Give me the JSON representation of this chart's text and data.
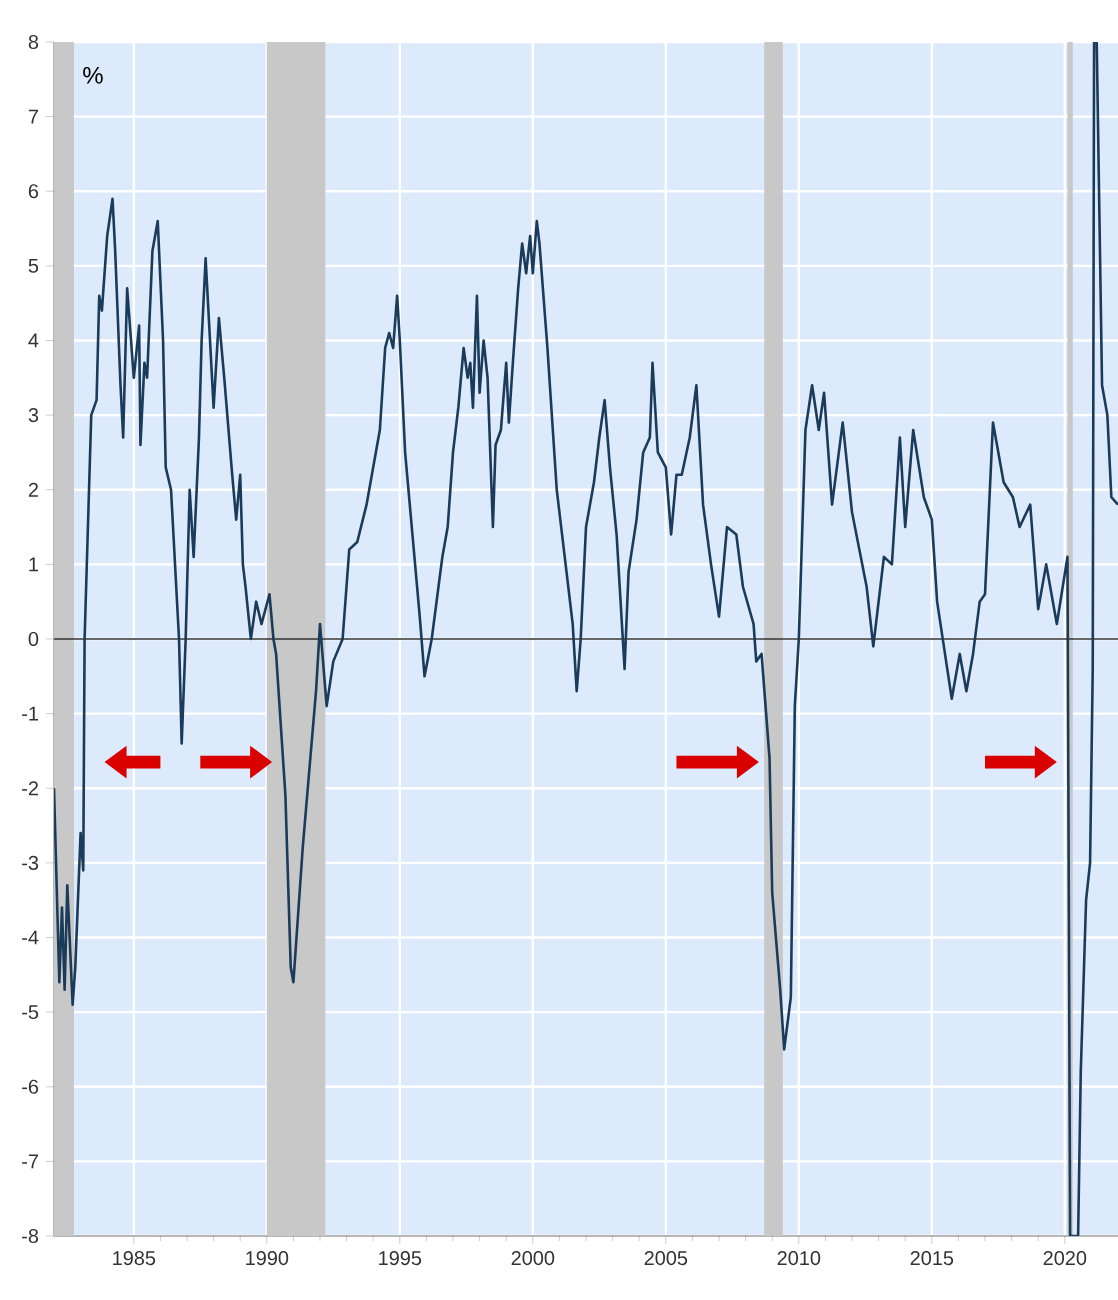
{
  "chart_data": {
    "type": "line",
    "ylabel": "%",
    "xlim": [
      1982,
      2022
    ],
    "ylim": [
      -8,
      8
    ],
    "xticks": [
      1985,
      1990,
      1995,
      2000,
      2005,
      2010,
      2015,
      2020
    ],
    "yticks": [
      -8,
      -7,
      -6,
      -5,
      -4,
      -3,
      -2,
      -1,
      0,
      1,
      2,
      3,
      4,
      5,
      6,
      7,
      8
    ],
    "grid": true,
    "bands": [
      {
        "axis": "x",
        "from": 1982.0,
        "to": 1982.75,
        "color": "#c8c8c8"
      },
      {
        "axis": "x",
        "from": 1990.0,
        "to": 1992.2,
        "color": "#c8c8c8"
      },
      {
        "axis": "x",
        "from": 2008.7,
        "to": 2009.4,
        "color": "#c8c8c8"
      },
      {
        "axis": "x",
        "from": 2020.1,
        "to": 2020.3,
        "color": "#c8c8c8"
      }
    ],
    "ref_lines": [
      {
        "axis": "y",
        "value": 0,
        "color": "#333333"
      }
    ],
    "series": [
      {
        "color": "#1b3b5a",
        "x": [
          1982.0,
          1982.2,
          1982.3,
          1982.4,
          1982.5,
          1982.7,
          1982.8,
          1983.0,
          1983.1,
          1983.15,
          1983.4,
          1983.6,
          1983.7,
          1983.8,
          1984.0,
          1984.2,
          1984.3,
          1984.5,
          1984.6,
          1984.75,
          1985.0,
          1985.2,
          1985.25,
          1985.4,
          1985.5,
          1985.7,
          1985.9,
          1986.1,
          1986.2,
          1986.4,
          1986.7,
          1986.8,
          1986.95,
          1987.1,
          1987.25,
          1987.45,
          1987.55,
          1987.7,
          1988.0,
          1988.2,
          1988.4,
          1988.7,
          1988.85,
          1989.0,
          1989.1,
          1989.2,
          1989.4,
          1989.6,
          1989.8,
          1990.1,
          1990.25,
          1990.35,
          1990.7,
          1990.9,
          1991.0,
          1991.35,
          1991.85,
          1992.0,
          1992.25,
          1992.5,
          1992.85,
          1993.1,
          1993.4,
          1993.75,
          1994.0,
          1994.25,
          1994.45,
          1994.6,
          1994.75,
          1994.9,
          1995.0,
          1995.2,
          1995.45,
          1995.75,
          1995.93,
          1996.2,
          1996.6,
          1996.8,
          1997.0,
          1997.2,
          1997.4,
          1997.55,
          1997.65,
          1997.75,
          1997.9,
          1998.0,
          1998.15,
          1998.3,
          1998.5,
          1998.6,
          1998.8,
          1999.0,
          1999.1,
          1999.25,
          1999.45,
          1999.6,
          1999.75,
          1999.9,
          2000.0,
          2000.15,
          2000.25,
          2000.55,
          2000.9,
          2001.2,
          2001.5,
          2001.65,
          2001.8,
          2002.0,
          2002.3,
          2002.5,
          2002.7,
          2002.9,
          2003.15,
          2003.3,
          2003.45,
          2003.6,
          2003.9,
          2004.15,
          2004.4,
          2004.5,
          2004.7,
          2005.0,
          2005.2,
          2005.4,
          2005.6,
          2005.9,
          2006.15,
          2006.4,
          2006.7,
          2007.0,
          2007.3,
          2007.65,
          2007.9,
          2008.3,
          2008.4,
          2008.6,
          2008.9,
          2009.0,
          2009.3,
          2009.45,
          2009.7,
          2009.85,
          2010.0,
          2010.25,
          2010.5,
          2010.75,
          2010.95,
          2011.25,
          2011.65,
          2012.0,
          2012.55,
          2012.8,
          2013.2,
          2013.5,
          2013.8,
          2014.0,
          2014.3,
          2014.7,
          2015.0,
          2015.2,
          2015.75,
          2016.05,
          2016.3,
          2016.55,
          2016.8,
          2017.0,
          2017.3,
          2017.7,
          2018.05,
          2018.3,
          2018.7,
          2019.0,
          2019.3,
          2019.7,
          2020.1,
          2020.2,
          2020.5,
          2020.6,
          2020.8,
          2020.95,
          2021.05,
          2021.1,
          2021.2,
          2021.4,
          2021.6,
          2021.75,
          2022.0
        ],
        "values": [
          -2.0,
          -4.6,
          -3.6,
          -4.7,
          -3.3,
          -4.9,
          -4.4,
          -2.6,
          -3.1,
          0.0,
          3.0,
          3.2,
          4.6,
          4.4,
          5.4,
          5.9,
          5.2,
          3.4,
          2.7,
          4.7,
          3.5,
          4.2,
          2.6,
          3.7,
          3.5,
          5.2,
          5.6,
          4.0,
          2.3,
          2.0,
          0.0,
          -1.4,
          0.0,
          2.0,
          1.1,
          2.7,
          4.0,
          5.1,
          3.1,
          4.3,
          3.5,
          2.2,
          1.6,
          2.2,
          1.0,
          0.7,
          0.0,
          0.5,
          0.2,
          0.6,
          0.0,
          -0.2,
          -2.1,
          -4.4,
          -4.6,
          -2.8,
          -0.7,
          0.2,
          -0.9,
          -0.3,
          0.0,
          1.2,
          1.3,
          1.8,
          2.3,
          2.8,
          3.9,
          4.1,
          3.9,
          4.6,
          4.0,
          2.5,
          1.5,
          0.3,
          -0.5,
          0.0,
          1.1,
          1.5,
          2.5,
          3.1,
          3.9,
          3.5,
          3.7,
          3.1,
          4.6,
          3.3,
          4.0,
          3.5,
          1.5,
          2.6,
          2.8,
          3.7,
          2.9,
          3.7,
          4.7,
          5.3,
          4.9,
          5.4,
          4.9,
          5.6,
          5.3,
          3.9,
          2.0,
          1.1,
          0.2,
          -0.7,
          0.0,
          1.5,
          2.1,
          2.7,
          3.2,
          2.3,
          1.4,
          0.5,
          -0.4,
          0.9,
          1.6,
          2.5,
          2.7,
          3.7,
          2.5,
          2.3,
          1.4,
          2.2,
          2.2,
          2.7,
          3.4,
          1.8,
          1.0,
          0.3,
          1.5,
          1.4,
          0.7,
          0.2,
          -0.3,
          -0.2,
          -1.6,
          -3.4,
          -4.7,
          -5.5,
          -4.8,
          -0.9,
          0.0,
          2.8,
          3.4,
          2.8,
          3.3,
          1.8,
          2.9,
          1.7,
          0.7,
          -0.1,
          1.1,
          1.0,
          2.7,
          1.5,
          2.8,
          1.9,
          1.6,
          0.5,
          -0.8,
          -0.2,
          -0.7,
          -0.2,
          0.5,
          0.6,
          2.9,
          2.1,
          1.9,
          1.5,
          1.8,
          0.4,
          1.0,
          0.2,
          1.1,
          -8.0,
          -8.0,
          -5.8,
          -3.5,
          -3.0,
          -0.4,
          8.0,
          8.0,
          3.4,
          3.0,
          1.9,
          1.8
        ]
      }
    ]
  }
}
